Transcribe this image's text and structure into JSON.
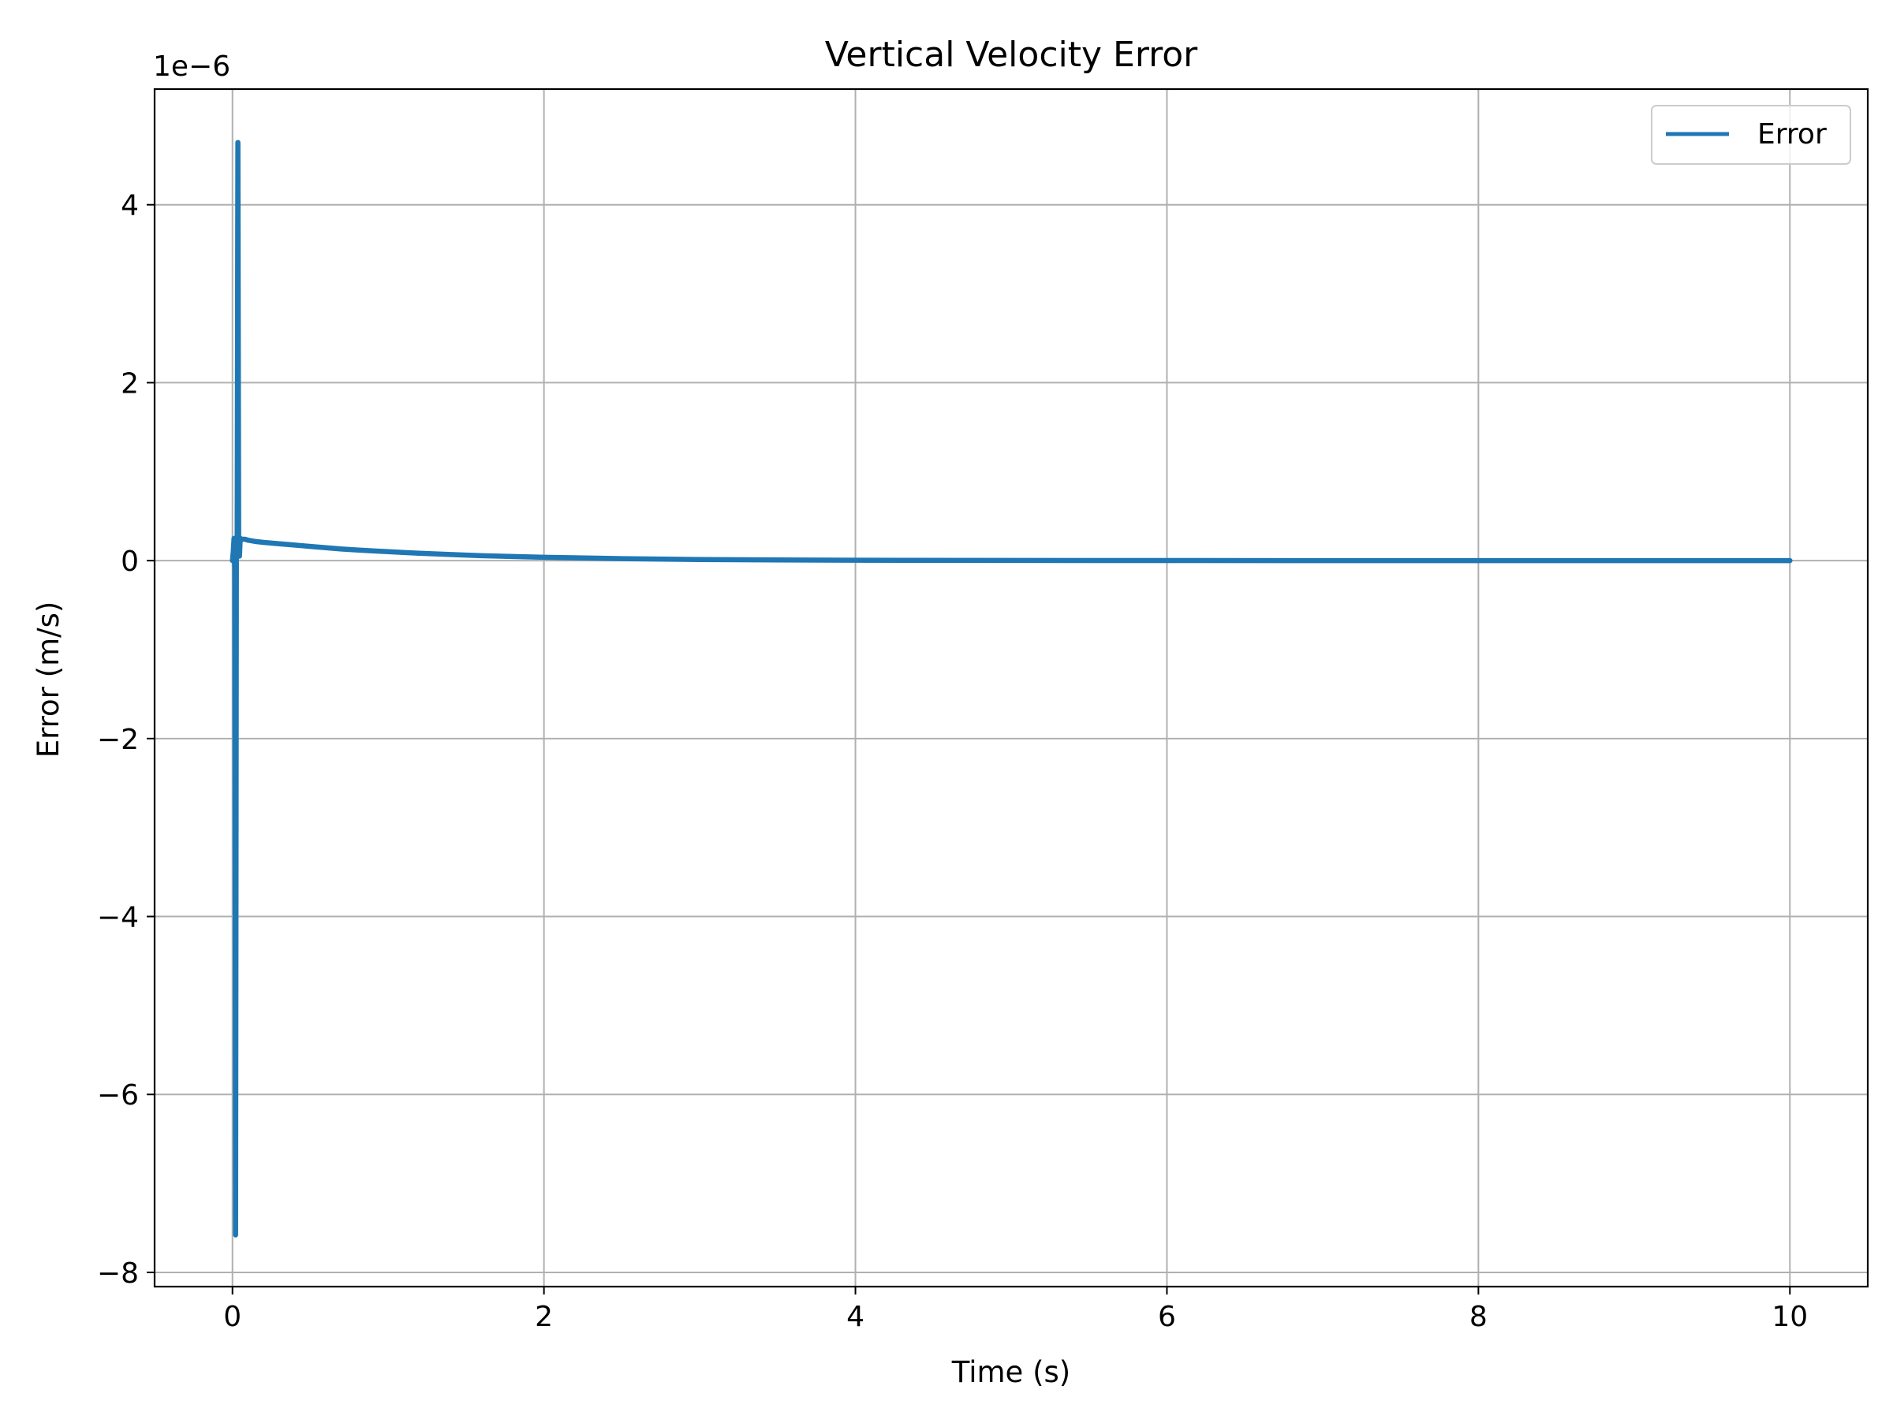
{
  "chart_data": {
    "type": "line",
    "title": "Vertical Velocity Error",
    "xlabel": "Time (s)",
    "ylabel": "Error (m/s)",
    "y_offset_label": "1e−6",
    "xlim": [
      -0.5,
      10.5
    ],
    "ylim": [
      -8.16,
      5.3
    ],
    "y_scale_factor": 1e-06,
    "x_ticks": [
      0,
      2,
      4,
      6,
      8,
      10
    ],
    "x_tick_labels": [
      "0",
      "2",
      "4",
      "6",
      "8",
      "10"
    ],
    "y_ticks": [
      -8,
      -6,
      -4,
      -2,
      0,
      2,
      4
    ],
    "y_tick_labels": [
      "−8",
      "−6",
      "−4",
      "−2",
      "0",
      "2",
      "4"
    ],
    "grid": true,
    "legend_position": "top-right",
    "series": [
      {
        "name": "Error",
        "color": "#1f77b4",
        "x": [
          0.0,
          0.005,
          0.01,
          0.015,
          0.02,
          0.025,
          0.03,
          0.035,
          0.04,
          0.045,
          0.05,
          0.06,
          0.08,
          0.1,
          0.15,
          0.2,
          0.3,
          0.4,
          0.5,
          0.6,
          0.7,
          0.8,
          0.9,
          1.0,
          1.2,
          1.4,
          1.6,
          1.8,
          2.0,
          2.5,
          3.0,
          3.5,
          4.0,
          5.0,
          6.0,
          7.0,
          8.0,
          9.0,
          10.0
        ],
        "y": [
          0.0,
          0.1,
          0.25,
          -0.1,
          -7.58,
          0.1,
          0.25,
          4.7,
          0.25,
          0.05,
          0.25,
          0.24,
          0.24,
          0.23,
          0.215,
          0.205,
          0.19,
          0.175,
          0.16,
          0.145,
          0.13,
          0.12,
          0.11,
          0.1,
          0.083,
          0.068,
          0.055,
          0.046,
          0.037,
          0.022,
          0.013,
          0.008,
          0.005,
          0.002,
          0.001,
          0.0,
          0.0,
          0.0,
          0.0
        ]
      }
    ]
  }
}
